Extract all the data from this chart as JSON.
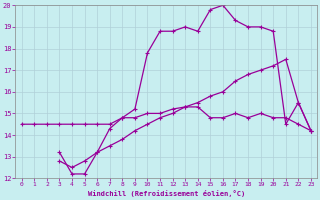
{
  "xlabel": "Windchill (Refroidissement éolien,°C)",
  "bg_color": "#c8eef0",
  "line_color": "#990099",
  "grid_color": "#b0d0d8",
  "xlim": [
    -0.5,
    23.5
  ],
  "ylim": [
    12,
    20
  ],
  "xticks": [
    0,
    1,
    2,
    3,
    4,
    5,
    6,
    7,
    8,
    9,
    10,
    11,
    12,
    13,
    14,
    15,
    16,
    17,
    18,
    19,
    20,
    21,
    22,
    23
  ],
  "yticks": [
    12,
    13,
    14,
    15,
    16,
    17,
    18,
    19,
    20
  ],
  "line1_x": [
    0,
    1,
    2,
    3,
    4,
    5,
    6,
    7,
    8,
    9,
    10,
    11,
    12,
    13,
    14,
    15,
    16,
    17,
    18,
    19,
    20,
    21,
    22,
    23
  ],
  "line1_y": [
    14.5,
    14.5,
    14.5,
    14.5,
    14.5,
    14.5,
    14.5,
    14.5,
    14.8,
    14.8,
    15.0,
    15.0,
    15.2,
    15.3,
    15.3,
    14.8,
    14.8,
    15.0,
    14.8,
    15.0,
    14.8,
    14.8,
    14.5,
    14.2
  ],
  "line2_x": [
    3,
    4,
    5,
    6,
    7,
    8,
    9,
    10,
    11,
    12,
    13,
    14,
    15,
    16,
    17,
    18,
    19,
    20,
    21,
    22,
    23
  ],
  "line2_y": [
    13.2,
    12.2,
    12.2,
    13.2,
    14.3,
    14.8,
    15.2,
    17.8,
    18.8,
    18.8,
    19.0,
    18.8,
    19.8,
    20.0,
    19.3,
    19.0,
    19.0,
    18.8,
    14.5,
    15.5,
    14.2
  ],
  "line3_x": [
    3,
    4,
    5,
    6,
    7,
    8,
    9,
    10,
    11,
    12,
    13,
    14,
    15,
    16,
    17,
    18,
    19,
    20,
    21,
    22,
    23
  ],
  "line3_y": [
    12.8,
    12.5,
    12.8,
    13.2,
    13.5,
    13.8,
    14.2,
    14.5,
    14.8,
    15.0,
    15.3,
    15.5,
    15.8,
    16.0,
    16.5,
    16.8,
    17.0,
    17.2,
    17.5,
    15.5,
    14.2
  ]
}
